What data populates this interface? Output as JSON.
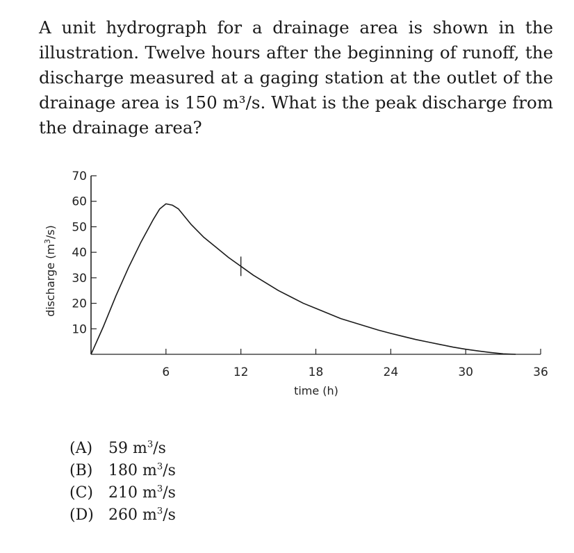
{
  "question": {
    "text": "A unit hydrograph for a drainage area is shown in the illustration. Twelve hours after the beginning of runoff, the discharge measured at a gaging station at the outlet of the drainage area is 150 m³/s. What is the peak discharge from the drainage area?"
  },
  "choices": [
    {
      "letter": "(A)",
      "value": "59",
      "unit": "m",
      "unit_power": "3",
      "unit_rest": "/s"
    },
    {
      "letter": "(B)",
      "value": "180",
      "unit": "m",
      "unit_power": "3",
      "unit_rest": "/s"
    },
    {
      "letter": "(C)",
      "value": "210",
      "unit": "m",
      "unit_power": "3",
      "unit_rest": "/s"
    },
    {
      "letter": "(D)",
      "value": "260",
      "unit": "m",
      "unit_power": "3",
      "unit_rest": "/s"
    }
  ],
  "chart_data": {
    "type": "line",
    "title": "",
    "xlabel": "time (h)",
    "ylabel_main": "discharge (m",
    "ylabel_power": "3",
    "ylabel_tail": "/s)",
    "xlim": [
      0,
      36
    ],
    "ylim": [
      0,
      70
    ],
    "xticks": [
      6,
      12,
      18,
      24,
      30,
      36
    ],
    "yticks": [
      10,
      20,
      30,
      40,
      50,
      60,
      70
    ],
    "grid": false,
    "series": [
      {
        "x": [
          0,
          1,
          2,
          3,
          4,
          5,
          5.5,
          6,
          6.5,
          7,
          8,
          9,
          10,
          11,
          12,
          13,
          14,
          15,
          16,
          17,
          18,
          19,
          20,
          21,
          22,
          23,
          24,
          25,
          26,
          27,
          28,
          29,
          30,
          31,
          32,
          33,
          34
        ],
        "y": [
          0,
          11,
          23,
          34,
          44,
          53,
          57,
          59,
          58.5,
          57,
          51,
          46,
          42,
          38,
          34.5,
          31,
          28,
          25,
          22.5,
          20,
          18,
          16,
          14,
          12.5,
          11,
          9.5,
          8.2,
          7,
          5.8,
          4.8,
          3.8,
          2.8,
          2,
          1.3,
          0.7,
          0.2,
          0
        ]
      }
    ],
    "annotations": [
      {
        "type": "marker",
        "x": 12
      }
    ]
  }
}
